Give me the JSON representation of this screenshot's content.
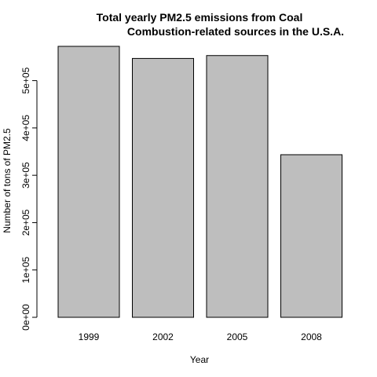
{
  "chart_data": {
    "type": "bar",
    "title_lines": [
      "Total yearly PM2.5 emissions from Coal",
      "Combustion-related sources in the U.S.A."
    ],
    "xlabel": "Year",
    "ylabel": "Number of tons of PM2.5",
    "categories": [
      "1999",
      "2002",
      "2005",
      "2008"
    ],
    "values": [
      572346,
      546789,
      552881,
      343432
    ],
    "ylim": [
      0,
      572346
    ],
    "yticks": [
      0,
      100000,
      200000,
      300000,
      400000,
      500000
    ],
    "ytick_labels": [
      "0e+00",
      "1e+05",
      "2e+05",
      "3e+05",
      "4e+05",
      "5e+05"
    ],
    "bar_fill": "#bebebe",
    "bar_stroke": "#000000",
    "grid": false,
    "legend": "none"
  }
}
